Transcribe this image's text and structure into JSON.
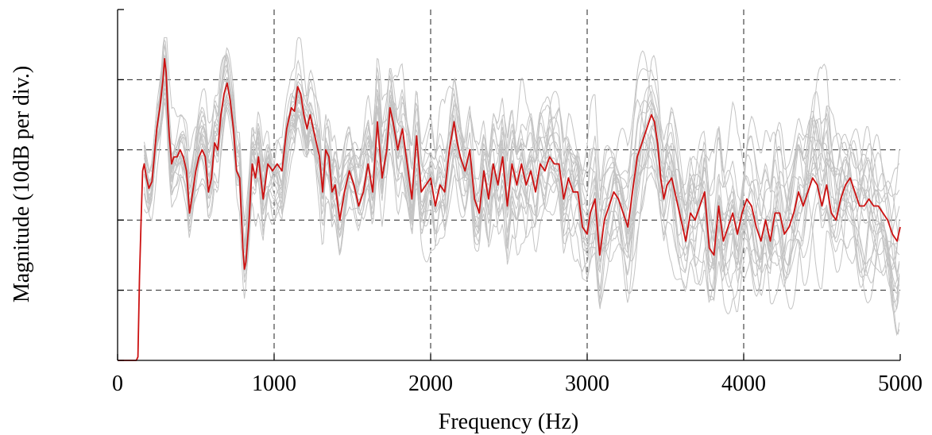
{
  "chart_data": {
    "type": "line",
    "title": "",
    "xlabel": "Frequency (Hz)",
    "ylabel": "Magnitude (10dB per div.)",
    "xlim": [
      0,
      5000
    ],
    "ylim": [
      0,
      50
    ],
    "xticks": [
      0,
      1000,
      2000,
      3000,
      4000,
      5000
    ],
    "xtick_labels": [
      "0",
      "1000",
      "2000",
      "3000",
      "4000",
      "5000"
    ],
    "yticks": [
      0,
      10,
      20,
      30,
      40,
      50
    ],
    "grid": true,
    "legend": "none",
    "colors": {
      "mean": "#cc1111",
      "individual": "#c4c4c4",
      "grid": "#222222"
    },
    "mean_series": {
      "x": [
        0,
        120,
        130,
        140,
        150,
        160,
        170,
        185,
        200,
        220,
        250,
        270,
        290,
        300,
        310,
        320,
        330,
        345,
        360,
        380,
        400,
        420,
        440,
        460,
        480,
        500,
        520,
        540,
        560,
        580,
        600,
        620,
        640,
        660,
        680,
        700,
        720,
        740,
        760,
        780,
        800,
        810,
        820,
        840,
        860,
        880,
        900,
        930,
        960,
        990,
        1020,
        1050,
        1080,
        1110,
        1130,
        1150,
        1170,
        1190,
        1210,
        1230,
        1250,
        1270,
        1290,
        1310,
        1330,
        1350,
        1370,
        1390,
        1420,
        1450,
        1480,
        1510,
        1540,
        1570,
        1600,
        1630,
        1660,
        1690,
        1720,
        1740,
        1760,
        1790,
        1820,
        1850,
        1880,
        1910,
        1940,
        1970,
        2000,
        2030,
        2060,
        2090,
        2120,
        2150,
        2170,
        2190,
        2220,
        2250,
        2280,
        2310,
        2340,
        2370,
        2400,
        2430,
        2460,
        2490,
        2520,
        2550,
        2580,
        2610,
        2640,
        2670,
        2700,
        2730,
        2760,
        2790,
        2820,
        2850,
        2880,
        2910,
        2940,
        2970,
        3000,
        3020,
        3050,
        3080,
        3110,
        3140,
        3170,
        3200,
        3230,
        3260,
        3290,
        3320,
        3350,
        3380,
        3410,
        3430,
        3450,
        3470,
        3490,
        3510,
        3540,
        3570,
        3600,
        3630,
        3660,
        3690,
        3720,
        3750,
        3780,
        3810,
        3840,
        3870,
        3900,
        3930,
        3960,
        3990,
        4020,
        4050,
        4080,
        4110,
        4140,
        4170,
        4200,
        4230,
        4260,
        4290,
        4320,
        4350,
        4380,
        4410,
        4440,
        4470,
        4500,
        4530,
        4560,
        4590,
        4620,
        4650,
        4680,
        4710,
        4740,
        4770,
        4800,
        4830,
        4860,
        4890,
        4920,
        4950,
        4980,
        5000
      ],
      "y": [
        0,
        0,
        0.5,
        12,
        20,
        27,
        28,
        26,
        24.5,
        25.5,
        33,
        36,
        40,
        43,
        41,
        36,
        32,
        28,
        29,
        29,
        30,
        29,
        27,
        21,
        24,
        27,
        29,
        30,
        29,
        24,
        26,
        31,
        30,
        35,
        38,
        39.5,
        37,
        33,
        27,
        26,
        16,
        13,
        14,
        20,
        28,
        26,
        29,
        23,
        28,
        27,
        28,
        27,
        33,
        36,
        35.5,
        39,
        38,
        35,
        33,
        35,
        33,
        31,
        29,
        24,
        30,
        29,
        24,
        25,
        20,
        24,
        27,
        25,
        22,
        24,
        28,
        24,
        34,
        26,
        30,
        36,
        34,
        30,
        33,
        28,
        23,
        32,
        24,
        25,
        26,
        22,
        25,
        24,
        30,
        34,
        31,
        29,
        27,
        30,
        23,
        21,
        27,
        23,
        28,
        25,
        29,
        22,
        28,
        25,
        28,
        25,
        27,
        24,
        28,
        27,
        29,
        28,
        28,
        23,
        26,
        24,
        24,
        19,
        18,
        21,
        23,
        15,
        20,
        22,
        24,
        23,
        21,
        19,
        24,
        29,
        31,
        33,
        35,
        34,
        31,
        26,
        23,
        25,
        26,
        23,
        20,
        17,
        21,
        20,
        22,
        24,
        16,
        15,
        22,
        17,
        19,
        21,
        18,
        21,
        23,
        22,
        19,
        17,
        20,
        17,
        21,
        21,
        18,
        19,
        21,
        24,
        22,
        24,
        26,
        25,
        22,
        25,
        21,
        20,
        23,
        25,
        26,
        24,
        22,
        22,
        23,
        22,
        22,
        21,
        20,
        18,
        17,
        19
      ]
    },
    "individual_series_count": 20
  }
}
